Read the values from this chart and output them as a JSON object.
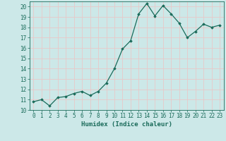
{
  "x": [
    0,
    1,
    2,
    3,
    4,
    5,
    6,
    7,
    8,
    9,
    10,
    11,
    12,
    13,
    14,
    15,
    16,
    17,
    18,
    19,
    20,
    21,
    22,
    23
  ],
  "y": [
    10.8,
    11.0,
    10.4,
    11.2,
    11.3,
    11.6,
    11.8,
    11.4,
    11.8,
    12.6,
    14.0,
    15.9,
    16.7,
    19.3,
    20.3,
    19.1,
    20.1,
    19.3,
    18.4,
    17.0,
    17.6,
    18.3,
    18.0,
    18.2
  ],
  "xlabel": "Humidex (Indice chaleur)",
  "ylim": [
    10,
    20.5
  ],
  "xlim": [
    -0.5,
    23.5
  ],
  "yticks": [
    10,
    11,
    12,
    13,
    14,
    15,
    16,
    17,
    18,
    19,
    20
  ],
  "xticks": [
    0,
    1,
    2,
    3,
    4,
    5,
    6,
    7,
    8,
    9,
    10,
    11,
    12,
    13,
    14,
    15,
    16,
    17,
    18,
    19,
    20,
    21,
    22,
    23
  ],
  "line_color": "#1a6b5a",
  "marker": "D",
  "marker_size": 1.8,
  "bg_color": "#cce8e8",
  "grid_color": "#e8c8c8",
  "tick_label_fontsize": 5.5,
  "xlabel_fontsize": 6.5
}
